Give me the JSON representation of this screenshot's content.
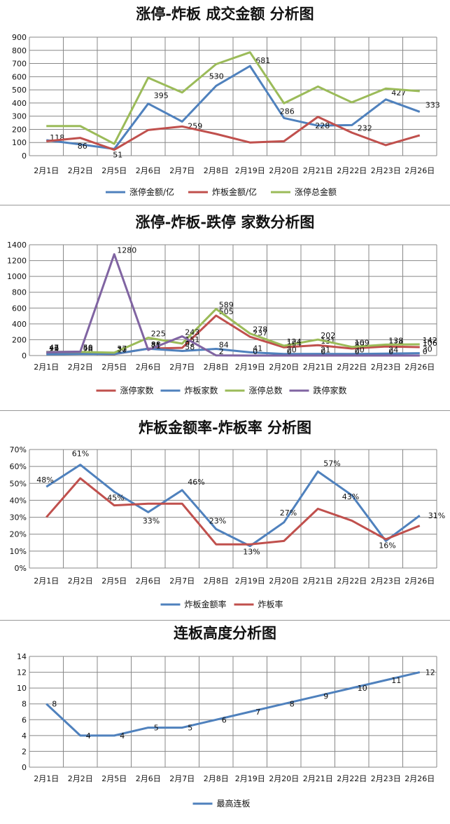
{
  "chart_data": [
    {
      "type": "line",
      "title": "涨停-炸板 成交金额 分析图",
      "categories": [
        "2月1日",
        "2月2日",
        "2月5日",
        "2月6日",
        "2月7日",
        "2月8日",
        "2月19日",
        "2月20日",
        "2月21日",
        "2月22日",
        "2月23日",
        "2月26日"
      ],
      "ylim": [
        0,
        900
      ],
      "yticks": [
        "0",
        "100",
        "200",
        "300",
        "400",
        "500",
        "600",
        "700",
        "800",
        "900"
      ],
      "grid": true,
      "legend_position": "bottom",
      "series": [
        {
          "name": "涨停金额/亿",
          "color": "#4F81BD",
          "values": [
            118,
            86,
            51,
            395,
            259,
            530,
            681,
            286,
            228,
            232,
            427,
            333
          ],
          "labels": [
            "118",
            "86",
            "51",
            "395",
            "259",
            "530",
            "681",
            "286",
            "228",
            "232",
            "427",
            "333"
          ]
        },
        {
          "name": "炸板金额/亿",
          "color": "#C0504D",
          "values": [
            110,
            135,
            45,
            195,
            222,
            165,
            100,
            110,
            295,
            175,
            80,
            155
          ],
          "labels": []
        },
        {
          "name": "涨停总金额",
          "color": "#9BBB59",
          "values": [
            225,
            225,
            90,
            592,
            480,
            695,
            785,
            398,
            525,
            405,
            510,
            490
          ],
          "labels": []
        }
      ]
    },
    {
      "type": "line",
      "title": "涨停-炸板-跌停 家数分析图",
      "categories": [
        "2月1日",
        "2月2日",
        "2月5日",
        "2月6日",
        "2月7日",
        "2月8日",
        "2月19日",
        "2月20日",
        "2月21日",
        "2月22日",
        "2月23日",
        "2月26日"
      ],
      "ylim": [
        0,
        1400
      ],
      "yticks": [
        "0",
        "200",
        "400",
        "600",
        "800",
        "1000",
        "1200",
        "1400"
      ],
      "grid": true,
      "legend_position": "bottom",
      "series": [
        {
          "name": "涨停家数",
          "color": "#C0504D",
          "values": [
            29,
            26,
            17,
            88,
            97,
            505,
            237,
            104,
            131,
            89,
            114,
            106
          ],
          "labels": [
            "29",
            "26",
            "17",
            "88",
            "97",
            "505",
            "237",
            "104",
            "131",
            "89",
            "114",
            "106"
          ]
        },
        {
          "name": "炸板家数",
          "color": "#4F81BD",
          "values": [
            15,
            20,
            20,
            86,
            58,
            84,
            41,
            20,
            21,
            20,
            24,
            30
          ],
          "labels": [
            "15",
            "20",
            "20",
            "86",
            "58",
            "84",
            "41",
            "20",
            "21",
            "20",
            "24",
            "30"
          ]
        },
        {
          "name": "涨停总数",
          "color": "#9BBB59",
          "values": [
            47,
            46,
            37,
            225,
            151,
            589,
            278,
            124,
            202,
            109,
            138,
            142
          ],
          "labels": [
            "47",
            "46",
            "37",
            "225",
            "151",
            "589",
            "278",
            "124",
            "202",
            "109",
            "138",
            "142"
          ]
        },
        {
          "name": "跌停家数",
          "color": "#8064A2",
          "values": [
            43,
            50,
            1280,
            71,
            243,
            2,
            0,
            0,
            0,
            0,
            0,
            0
          ],
          "labels": [
            "43",
            "50",
            "1280",
            "71",
            "243",
            "2",
            "0",
            "0",
            "0",
            "0",
            "0",
            "0"
          ]
        }
      ]
    },
    {
      "type": "line",
      "title": "炸板金额率-炸板率 分析图",
      "categories": [
        "2月1日",
        "2月2日",
        "2月5日",
        "2月6日",
        "2月7日",
        "2月8日",
        "2月19日",
        "2月20日",
        "2月21日",
        "2月22日",
        "2月23日",
        "2月26日"
      ],
      "ylim": [
        0,
        70
      ],
      "yticks": [
        "0%",
        "10%",
        "20%",
        "30%",
        "40%",
        "50%",
        "60%",
        "70%"
      ],
      "grid": true,
      "legend_position": "bottom",
      "series": [
        {
          "name": "炸板金额率",
          "color": "#4F81BD",
          "values": [
            48,
            61,
            45,
            33,
            46,
            23,
            13,
            27,
            57,
            43,
            16,
            31
          ],
          "labels": [
            "48%",
            "61%",
            "45%",
            "33%",
            "46%",
            "23%",
            "13%",
            "27%",
            "57%",
            "43%",
            "16%",
            "31%"
          ]
        },
        {
          "name": "炸板率",
          "color": "#C0504D",
          "values": [
            30,
            53,
            37,
            38,
            38,
            14,
            14,
            16,
            35,
            28,
            17,
            25
          ],
          "labels": []
        }
      ]
    },
    {
      "type": "line",
      "title": "连板高度分析图",
      "categories": [
        "2月1日",
        "2月2日",
        "2月5日",
        "2月6日",
        "2月7日",
        "2月8日",
        "2月19日",
        "2月20日",
        "2月21日",
        "2月22日",
        "2月23日",
        "2月26日"
      ],
      "ylim": [
        0,
        14
      ],
      "yticks": [
        "0",
        "2",
        "4",
        "6",
        "8",
        "10",
        "12",
        "14"
      ],
      "grid": true,
      "legend_position": "bottom",
      "series": [
        {
          "name": "最高连板",
          "color": "#4F81BD",
          "values": [
            8,
            4,
            4,
            5,
            5,
            6,
            7,
            8,
            9,
            10,
            11,
            12
          ],
          "labels": [
            "8",
            "4",
            "4",
            "5",
            "5",
            "6",
            "7",
            "8",
            "9",
            "10",
            "11",
            "12"
          ]
        }
      ]
    }
  ]
}
